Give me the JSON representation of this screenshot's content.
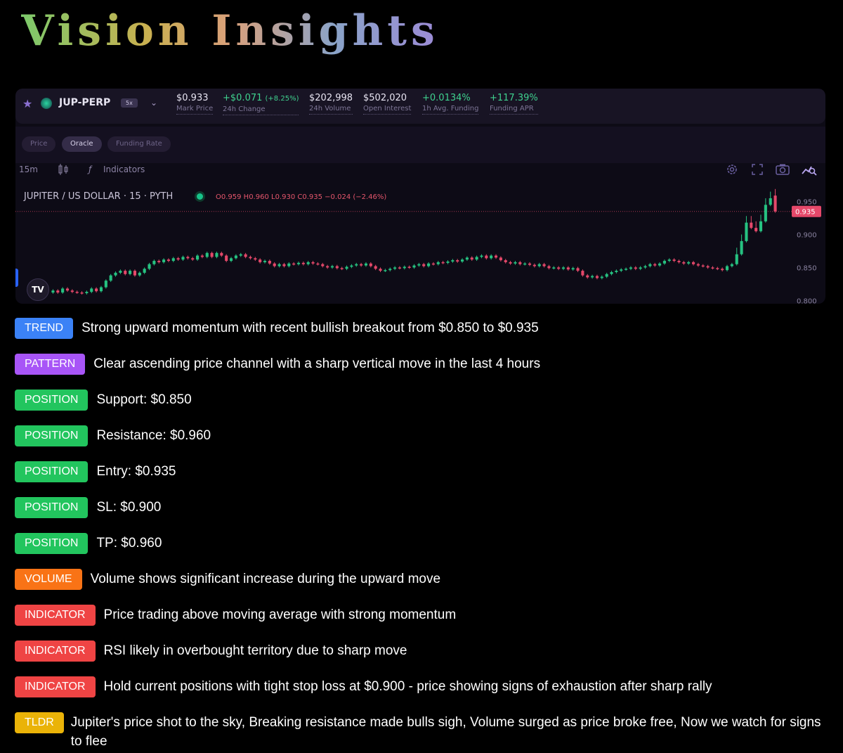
{
  "app_title": "Vision Insights",
  "colors": {
    "TREND": "#3b82f6",
    "PATTERN": "#a855f7",
    "POSITION": "#22c55e",
    "VOLUME": "#f97316",
    "INDICATOR": "#ef4444",
    "TLDR": "#eab308",
    "bull_candle": "#26c281",
    "bear_candle": "#e5486a"
  },
  "market": {
    "symbol": "JUP-PERP",
    "leverage": "5x",
    "stats": [
      {
        "value": "$0.933",
        "label": "Mark Price"
      },
      {
        "value": "+$0.071",
        "pct": "(+8.25%)",
        "label": "24h Change",
        "up": true
      },
      {
        "value": "$202,998",
        "label": "24h Volume"
      },
      {
        "value": "$502,020",
        "label": "Open Interest"
      },
      {
        "value": "+0.0134%",
        "label": "1h Avg. Funding",
        "up": true
      },
      {
        "value": "+117.39%",
        "label": "Funding APR",
        "up": true
      }
    ]
  },
  "tabs": [
    "Price",
    "Oracle",
    "Funding Rate"
  ],
  "active_tab": "Oracle",
  "toolbar": {
    "interval": "15m",
    "indicators": "Indicators"
  },
  "chart_legend": {
    "title": "JUPITER / US DOLLAR · 15 · PYTH",
    "ohlc": "O0.959  H0.960  L0.930  C0.935  −0.024 (−2.46%)"
  },
  "chart_data": {
    "type": "candlestick",
    "series_name": "JUPITER / US DOLLAR · 15 · PYTH",
    "y_ticks": [
      "0.950",
      "0.900",
      "0.850",
      "0.800"
    ],
    "ylim": [
      0.795,
      0.972
    ],
    "last_price": "0.935",
    "price_line": 0.935,
    "closes": [
      0.815,
      0.812,
      0.818,
      0.815,
      0.813,
      0.812,
      0.811,
      0.813,
      0.818,
      0.814,
      0.82,
      0.83,
      0.838,
      0.842,
      0.845,
      0.84,
      0.845,
      0.838,
      0.842,
      0.848,
      0.855,
      0.86,
      0.858,
      0.862,
      0.86,
      0.864,
      0.862,
      0.866,
      0.864,
      0.862,
      0.868,
      0.866,
      0.872,
      0.866,
      0.872,
      0.868,
      0.86,
      0.864,
      0.868,
      0.87,
      0.866,
      0.864,
      0.862,
      0.858,
      0.86,
      0.856,
      0.852,
      0.855,
      0.852,
      0.856,
      0.855,
      0.857,
      0.855,
      0.858,
      0.856,
      0.855,
      0.852,
      0.85,
      0.852,
      0.849,
      0.848,
      0.851,
      0.853,
      0.855,
      0.853,
      0.856,
      0.852,
      0.848,
      0.845,
      0.846,
      0.848,
      0.85,
      0.849,
      0.851,
      0.85,
      0.853,
      0.855,
      0.852,
      0.856,
      0.855,
      0.858,
      0.857,
      0.859,
      0.861,
      0.859,
      0.862,
      0.865,
      0.862,
      0.866,
      0.868,
      0.864,
      0.868,
      0.865,
      0.861,
      0.858,
      0.856,
      0.858,
      0.855,
      0.856,
      0.854,
      0.852,
      0.855,
      0.852,
      0.849,
      0.85,
      0.848,
      0.85,
      0.847,
      0.849,
      0.845,
      0.838,
      0.835,
      0.837,
      0.834,
      0.836,
      0.84,
      0.843,
      0.845,
      0.847,
      0.848,
      0.85,
      0.848,
      0.85,
      0.852,
      0.855,
      0.853,
      0.856,
      0.86,
      0.862,
      0.86,
      0.858,
      0.856,
      0.858,
      0.855,
      0.853,
      0.852,
      0.85,
      0.849,
      0.848,
      0.846,
      0.852,
      0.855,
      0.87,
      0.89,
      0.918,
      0.91,
      0.905,
      0.92,
      0.945,
      0.955,
      0.935
    ],
    "opens": [
      0.812,
      0.815,
      0.812,
      0.818,
      0.815,
      0.813,
      0.812,
      0.811,
      0.813,
      0.818,
      0.814,
      0.82,
      0.83,
      0.838,
      0.842,
      0.845,
      0.84,
      0.845,
      0.838,
      0.842,
      0.848,
      0.855,
      0.86,
      0.858,
      0.862,
      0.86,
      0.864,
      0.862,
      0.866,
      0.864,
      0.862,
      0.868,
      0.866,
      0.872,
      0.866,
      0.872,
      0.868,
      0.86,
      0.864,
      0.868,
      0.87,
      0.866,
      0.864,
      0.862,
      0.858,
      0.86,
      0.856,
      0.852,
      0.855,
      0.852,
      0.856,
      0.855,
      0.857,
      0.855,
      0.858,
      0.856,
      0.855,
      0.852,
      0.85,
      0.852,
      0.849,
      0.848,
      0.851,
      0.853,
      0.855,
      0.853,
      0.856,
      0.852,
      0.848,
      0.845,
      0.846,
      0.848,
      0.85,
      0.849,
      0.851,
      0.85,
      0.853,
      0.855,
      0.852,
      0.856,
      0.855,
      0.858,
      0.857,
      0.859,
      0.861,
      0.859,
      0.862,
      0.865,
      0.862,
      0.866,
      0.868,
      0.864,
      0.868,
      0.865,
      0.861,
      0.858,
      0.856,
      0.858,
      0.855,
      0.856,
      0.854,
      0.852,
      0.855,
      0.852,
      0.849,
      0.85,
      0.848,
      0.85,
      0.847,
      0.849,
      0.845,
      0.838,
      0.835,
      0.837,
      0.834,
      0.836,
      0.84,
      0.843,
      0.845,
      0.847,
      0.848,
      0.85,
      0.848,
      0.85,
      0.852,
      0.855,
      0.853,
      0.856,
      0.86,
      0.862,
      0.86,
      0.858,
      0.856,
      0.858,
      0.855,
      0.853,
      0.852,
      0.85,
      0.849,
      0.848,
      0.846,
      0.852,
      0.855,
      0.87,
      0.89,
      0.918,
      0.91,
      0.905,
      0.92,
      0.945,
      0.959
    ]
  },
  "insights": [
    {
      "tag": "TREND",
      "text": "Strong upward momentum with recent bullish breakout from $0.850 to $0.935"
    },
    {
      "tag": "PATTERN",
      "text": "Clear ascending price channel with a sharp vertical move in the last 4 hours"
    },
    {
      "tag": "POSITION",
      "text": "Support: $0.850"
    },
    {
      "tag": "POSITION",
      "text": "Resistance: $0.960"
    },
    {
      "tag": "POSITION",
      "text": "Entry: $0.935"
    },
    {
      "tag": "POSITION",
      "text": "SL: $0.900"
    },
    {
      "tag": "POSITION",
      "text": "TP: $0.960"
    },
    {
      "tag": "VOLUME",
      "text": "Volume shows significant increase during the upward move"
    },
    {
      "tag": "INDICATOR",
      "text": "Price trading above moving average with strong momentum"
    },
    {
      "tag": "INDICATOR",
      "text": "RSI likely in overbought territory due to sharp move"
    },
    {
      "tag": "INDICATOR",
      "text": "Hold current positions with tight stop loss at $0.900 - price showing signs of exhaustion after sharp rally"
    },
    {
      "tag": "TLDR",
      "text": "Jupiter's price shot to the sky, Breaking resistance made bulls sigh, Volume surged as price broke free, Now we watch for signs to flee"
    }
  ]
}
